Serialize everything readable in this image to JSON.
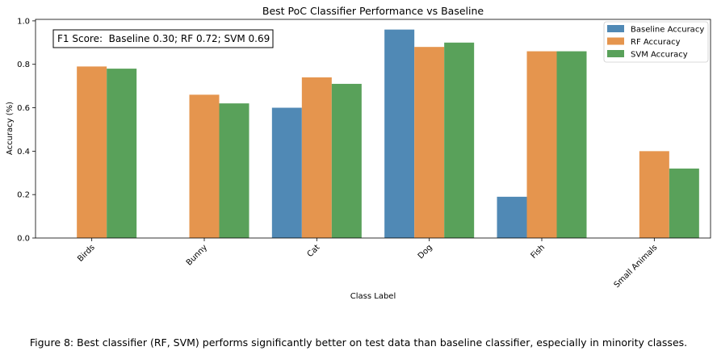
{
  "chart_data": {
    "type": "bar",
    "title": "Best PoC Classifier Performance vs Baseline",
    "xlabel": "Class Label",
    "ylabel": "Accuracy (%)",
    "ylim": [
      0,
      1.0
    ],
    "yticks": [
      "0.0",
      "0.2",
      "0.4",
      "0.6",
      "0.8",
      "1.0"
    ],
    "categories": [
      "Birds",
      "Bunny",
      "Cat",
      "Dog",
      "Fish",
      "Small Animals"
    ],
    "series": [
      {
        "name": "Baseline Accuracy",
        "color": "#5089b5",
        "values": [
          0,
          0,
          0.6,
          0.96,
          0.19,
          0
        ]
      },
      {
        "name": "RF Accuracy",
        "color": "#e5954e",
        "values": [
          0.79,
          0.66,
          0.74,
          0.88,
          0.86,
          0.4
        ]
      },
      {
        "name": "SVM Accuracy",
        "color": "#59a15a",
        "values": [
          0.78,
          0.62,
          0.71,
          0.9,
          0.86,
          0.32
        ]
      }
    ],
    "annotation": "F1 Score:  Baseline 0.30; RF 0.72; SVM 0.69",
    "legend_position": "top-right",
    "grid": false
  },
  "caption": "Figure 8: Best classifier (RF, SVM) performs significantly better on test data than baseline classifier, especially in minority classes."
}
